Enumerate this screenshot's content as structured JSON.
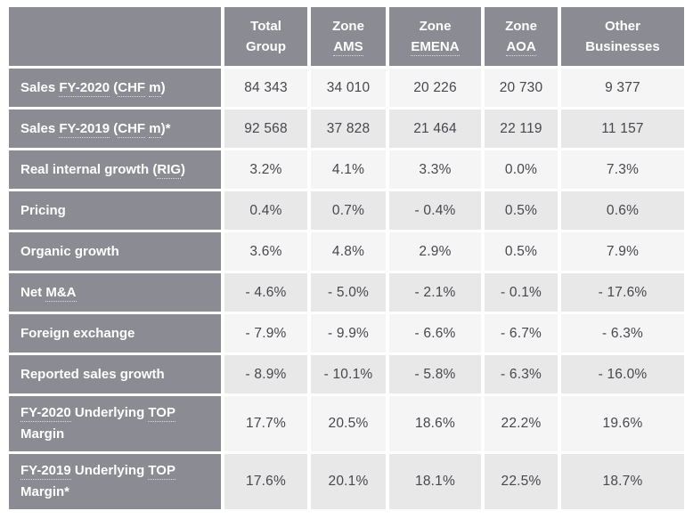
{
  "theme": {
    "gray_bg": "#8b8b93",
    "header_text": "#ffffff",
    "value_text": "#47474e",
    "row_light_bg": "#f5f5f5",
    "row_dark_bg": "#e8e8e8",
    "border_white": "#ffffff",
    "glossary_dot_color": "rgba(255,255,255,0.7)"
  },
  "chart_data": {
    "type": "table",
    "columns": [
      "",
      "Total Group",
      "Zone AMS",
      "Zone EMENA",
      "Zone AOA",
      "Other Businesses"
    ],
    "rows": [
      [
        "Sales FY-2020 (CHF m)",
        "84 343",
        "34 010",
        "20 226",
        "20 730",
        "9 377"
      ],
      [
        "Sales FY-2019 (CHF m)*",
        "92 568",
        "37 828",
        "21 464",
        "22 119",
        "11 157"
      ],
      [
        "Real internal growth (RIG)",
        "3.2%",
        "4.1%",
        "3.3%",
        "0.0%",
        "7.3%"
      ],
      [
        "Pricing",
        "0.4%",
        "0.7%",
        "- 0.4%",
        "0.5%",
        "0.6%"
      ],
      [
        "Organic growth",
        "3.6%",
        "4.8%",
        "2.9%",
        "0.5%",
        "7.9%"
      ],
      [
        "Net M&A",
        "- 4.6%",
        "- 5.0%",
        "- 2.1%",
        "- 0.1%",
        "- 17.6%"
      ],
      [
        "Foreign exchange",
        "- 7.9%",
        "- 9.9%",
        "- 6.6%",
        "- 6.7%",
        "- 6.3%"
      ],
      [
        "Reported sales growth",
        "- 8.9%",
        "- 10.1%",
        "- 5.8%",
        "- 6.3%",
        "- 16.0%"
      ],
      [
        "FY-2020 Underlying TOP Margin",
        "17.7%",
        "20.5%",
        "18.6%",
        "22.2%",
        "19.6%"
      ],
      [
        "FY-2019 Underlying TOP Margin*",
        "17.6%",
        "20.1%",
        "18.1%",
        "22.5%",
        "18.7%"
      ]
    ]
  },
  "ui": {
    "corner_label": "",
    "columns": [
      {
        "id": "total-group",
        "lines": [
          {
            "text": "Total",
            "glossary": false
          },
          {
            "text": "Group",
            "glossary": false
          }
        ]
      },
      {
        "id": "zone-ams",
        "lines": [
          {
            "text": "Zone",
            "glossary": false
          },
          {
            "text": "AMS",
            "glossary": true
          }
        ]
      },
      {
        "id": "zone-emena",
        "lines": [
          {
            "text": "Zone",
            "glossary": false
          },
          {
            "text": "EMENA",
            "glossary": true
          }
        ]
      },
      {
        "id": "zone-aoa",
        "lines": [
          {
            "text": "Zone",
            "glossary": false
          },
          {
            "text": "AOA",
            "glossary": true
          }
        ]
      },
      {
        "id": "other-businesses",
        "lines": [
          {
            "text": "Other",
            "glossary": false
          },
          {
            "text": "Businesses",
            "glossary": false
          }
        ]
      }
    ],
    "rows": [
      {
        "id": "sales-fy-2020",
        "tall": false,
        "label_parts": [
          {
            "text": "Sales ",
            "glossary": false
          },
          {
            "text": "FY-2020",
            "glossary": true
          },
          {
            "text": " (",
            "glossary": false
          },
          {
            "text": "CHF",
            "glossary": true
          },
          {
            "text": " ",
            "glossary": false
          },
          {
            "text": "m",
            "glossary": true
          },
          {
            "text": ")",
            "glossary": false
          }
        ]
      },
      {
        "id": "sales-fy-2019",
        "tall": false,
        "label_parts": [
          {
            "text": "Sales ",
            "glossary": false
          },
          {
            "text": "FY-2019",
            "glossary": true
          },
          {
            "text": " (",
            "glossary": false
          },
          {
            "text": "CHF",
            "glossary": true
          },
          {
            "text": " ",
            "glossary": false
          },
          {
            "text": "m",
            "glossary": true
          },
          {
            "text": ")*",
            "glossary": false
          }
        ]
      },
      {
        "id": "real-internal-growth",
        "tall": false,
        "label_parts": [
          {
            "text": "Real internal growth (",
            "glossary": false
          },
          {
            "text": "RIG",
            "glossary": true
          },
          {
            "text": ")",
            "glossary": false
          }
        ]
      },
      {
        "id": "pricing",
        "tall": false,
        "label_parts": [
          {
            "text": "Pricing",
            "glossary": false
          }
        ]
      },
      {
        "id": "organic-growth",
        "tall": false,
        "label_parts": [
          {
            "text": "Organic growth",
            "glossary": false
          }
        ]
      },
      {
        "id": "net-ma",
        "tall": false,
        "label_parts": [
          {
            "text": "Net ",
            "glossary": false
          },
          {
            "text": "M&A",
            "glossary": true
          }
        ]
      },
      {
        "id": "foreign-exchange",
        "tall": false,
        "label_parts": [
          {
            "text": "Foreign exchange",
            "glossary": false
          }
        ]
      },
      {
        "id": "reported-sales-growth",
        "tall": false,
        "label_parts": [
          {
            "text": "Reported sales growth",
            "glossary": false
          }
        ]
      },
      {
        "id": "fy-2020-underlying-top-margin",
        "tall": true,
        "label_parts": [
          {
            "text": "FY-2020",
            "glossary": true
          },
          {
            "text": " Underlying ",
            "glossary": false
          },
          {
            "text": "TOP",
            "glossary": true
          },
          {
            "text": " Margin",
            "glossary": false
          }
        ]
      },
      {
        "id": "fy-2019-underlying-top-margin",
        "tall": true,
        "label_parts": [
          {
            "text": "FY-2019",
            "glossary": true
          },
          {
            "text": " Underlying ",
            "glossary": false
          },
          {
            "text": "TOP",
            "glossary": true
          },
          {
            "text": " Margin*",
            "glossary": false
          }
        ]
      }
    ]
  }
}
